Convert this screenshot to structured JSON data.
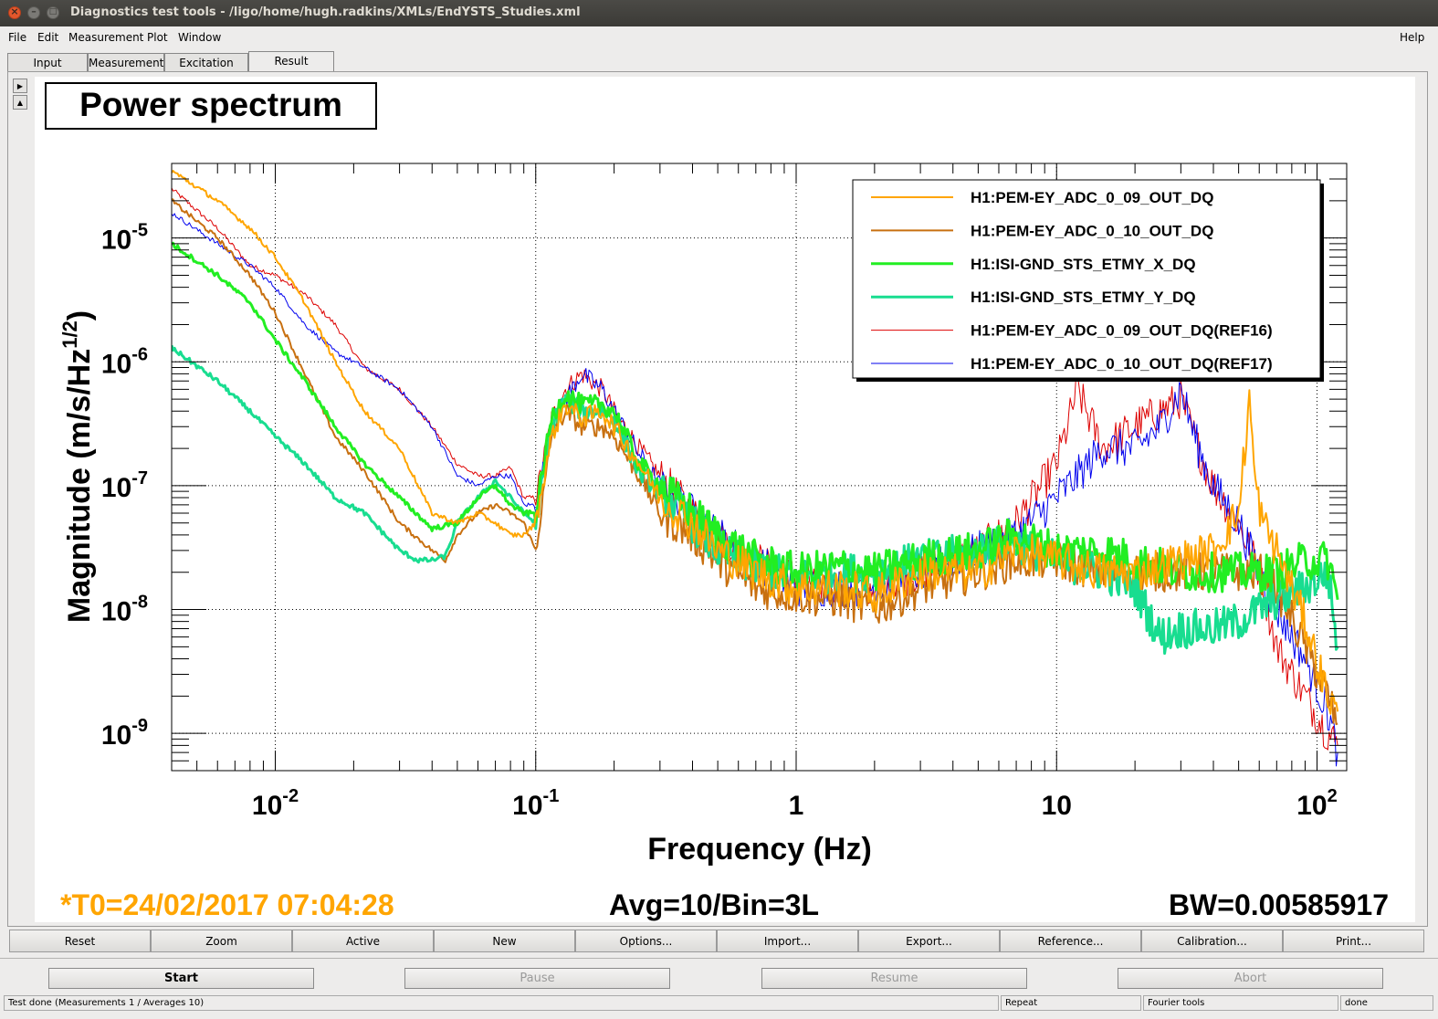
{
  "window": {
    "title": "Diagnostics test tools - /ligo/home/hugh.radkins/XMLs/EndYSTS_Studies.xml"
  },
  "menu": {
    "file": "File",
    "edit": "Edit",
    "measurement": "Measurement",
    "plot": "Plot",
    "window": "Window",
    "help": "Help"
  },
  "tabs": [
    "Input",
    "Measurement",
    "Excitation",
    "Result"
  ],
  "plot": {
    "title": "Power spectrum",
    "t0": "*T0=24/02/2017 07:04:28",
    "avg": "Avg=10/Bin=3L",
    "bw": "BW=0.00585917"
  },
  "chart_data": {
    "type": "line",
    "title": "Power spectrum",
    "xlabel": "Frequency (Hz)",
    "ylabel": "Magnitude (m/s/Hz^1/2)",
    "xscale": "log",
    "yscale": "log",
    "xlim": [
      0.004,
      130
    ],
    "ylim": [
      5e-10,
      4e-05
    ],
    "grid": true,
    "legend_position": "top-right",
    "x_ticks": [
      "10^-2",
      "10^-1",
      "1",
      "10",
      "10^2"
    ],
    "y_ticks": [
      "10^-9",
      "10^-8",
      "10^-7",
      "10^-6",
      "10^-5"
    ],
    "series": [
      {
        "name": "H1:PEM-EY_ADC_0_09_OUT_DQ",
        "color": "#ffa500",
        "width": 2,
        "x": [
          0.004,
          0.006,
          0.008,
          0.01,
          0.013,
          0.017,
          0.022,
          0.03,
          0.04,
          0.05,
          0.06,
          0.07,
          0.08,
          0.09,
          0.1,
          0.115,
          0.13,
          0.15,
          0.18,
          0.2,
          0.25,
          0.3,
          0.4,
          0.5,
          0.7,
          1,
          1.5,
          2,
          3,
          5,
          7,
          10,
          15,
          20,
          30,
          40,
          50,
          55,
          58,
          62,
          70,
          90,
          110,
          120
        ],
        "y": [
          3.5e-05,
          2e-05,
          1.2e-05,
          7e-06,
          3e-06,
          1e-06,
          4e-07,
          2e-07,
          6e-08,
          5e-08,
          6e-08,
          5e-08,
          4e-08,
          4e-08,
          5e-08,
          2.5e-07,
          4.5e-07,
          3.5e-07,
          4e-07,
          3e-07,
          1.5e-07,
          8e-08,
          5e-08,
          3e-08,
          2e-08,
          1.5e-08,
          1.5e-08,
          1.3e-08,
          2e-08,
          2e-08,
          3e-08,
          2.5e-08,
          2e-08,
          2e-08,
          2.5e-08,
          3e-08,
          6e-08,
          5e-07,
          1e-07,
          5e-08,
          3e-08,
          8e-09,
          2e-09,
          1.5e-09
        ]
      },
      {
        "name": "H1:PEM-EY_ADC_0_10_OUT_DQ",
        "color": "#c87010",
        "width": 2,
        "x": [
          0.004,
          0.006,
          0.008,
          0.01,
          0.013,
          0.017,
          0.022,
          0.03,
          0.04,
          0.045,
          0.05,
          0.06,
          0.07,
          0.08,
          0.09,
          0.1,
          0.115,
          0.13,
          0.15,
          0.18,
          0.2,
          0.25,
          0.3,
          0.4,
          0.5,
          0.7,
          1,
          1.5,
          2,
          3,
          5,
          7,
          10,
          15,
          20,
          30,
          40,
          50,
          60,
          70,
          90,
          110,
          120
        ],
        "y": [
          2e-05,
          1e-05,
          5e-06,
          2.5e-06,
          8e-07,
          2.5e-07,
          1.3e-07,
          5e-08,
          3e-08,
          2.5e-08,
          4e-08,
          6e-08,
          7e-08,
          6e-08,
          5e-08,
          3e-08,
          2.5e-07,
          4e-07,
          3e-07,
          3e-07,
          2.5e-07,
          1.2e-07,
          6e-08,
          4e-08,
          2.5e-08,
          1.5e-08,
          1.3e-08,
          1.2e-08,
          1e-08,
          1.5e-08,
          2e-08,
          2.5e-08,
          2.5e-08,
          2e-08,
          2e-08,
          2e-08,
          2e-08,
          2e-08,
          2e-08,
          1.5e-08,
          5e-09,
          2e-09,
          1.2e-09
        ]
      },
      {
        "name": "H1:ISI-GND_STS_ETMY_X_DQ",
        "color": "#22ee22",
        "width": 3,
        "x": [
          0.004,
          0.006,
          0.008,
          0.01,
          0.013,
          0.017,
          0.022,
          0.03,
          0.04,
          0.05,
          0.06,
          0.07,
          0.08,
          0.09,
          0.1,
          0.115,
          0.13,
          0.15,
          0.18,
          0.2,
          0.25,
          0.3,
          0.4,
          0.5,
          0.7,
          1,
          1.5,
          2,
          3,
          5,
          7,
          10,
          15,
          20,
          30,
          40,
          50,
          60,
          70,
          90,
          110,
          120
        ],
        "y": [
          9e-06,
          5e-06,
          3e-06,
          1.5e-06,
          7e-07,
          3e-07,
          1.5e-07,
          8e-08,
          4.5e-08,
          5e-08,
          8e-08,
          1e-07,
          7e-08,
          6e-08,
          6e-08,
          3.5e-07,
          5.5e-07,
          4.5e-07,
          4.5e-07,
          4e-07,
          1.5e-07,
          1e-07,
          6e-08,
          4e-08,
          2.5e-08,
          2e-08,
          2.2e-08,
          2e-08,
          2.5e-08,
          3e-08,
          4e-08,
          3e-08,
          3e-08,
          2.5e-08,
          2e-08,
          2e-08,
          2e-08,
          2e-08,
          2e-08,
          2.5e-08,
          2.5e-08,
          1.2e-08
        ]
      },
      {
        "name": "H1:ISI-GND_STS_ETMY_Y_DQ",
        "color": "#18dd90",
        "width": 3,
        "x": [
          0.004,
          0.006,
          0.008,
          0.01,
          0.013,
          0.017,
          0.022,
          0.03,
          0.035,
          0.04,
          0.045,
          0.05,
          0.06,
          0.07,
          0.08,
          0.09,
          0.1,
          0.115,
          0.13,
          0.15,
          0.18,
          0.2,
          0.25,
          0.3,
          0.4,
          0.5,
          0.7,
          1,
          1.5,
          2,
          3,
          5,
          7,
          10,
          15,
          20,
          25,
          30,
          40,
          50,
          60,
          70,
          90,
          110,
          120
        ],
        "y": [
          1.3e-06,
          7e-07,
          4e-07,
          2.5e-07,
          1.5e-07,
          8e-08,
          6e-08,
          3e-08,
          2.5e-08,
          2.5e-08,
          2.7e-08,
          5e-08,
          8e-08,
          1.1e-07,
          8e-08,
          6e-08,
          5e-08,
          3e-07,
          5e-07,
          4e-07,
          4e-07,
          3.5e-07,
          1.3e-07,
          9e-08,
          5e-08,
          3e-08,
          2.2e-08,
          1.8e-08,
          2e-08,
          2e-08,
          2.5e-08,
          3e-08,
          3.5e-08,
          2.5e-08,
          2e-08,
          1.5e-08,
          6e-09,
          7e-09,
          7e-09,
          8e-09,
          1e-08,
          1.2e-08,
          1.5e-08,
          2e-08,
          5e-09
        ]
      },
      {
        "name": "H1:PEM-EY_ADC_0_09_OUT_DQ(REF16)",
        "color": "#dd0000",
        "width": 1,
        "x": [
          0.004,
          0.006,
          0.008,
          0.01,
          0.013,
          0.017,
          0.022,
          0.03,
          0.04,
          0.05,
          0.06,
          0.07,
          0.08,
          0.09,
          0.1,
          0.115,
          0.13,
          0.15,
          0.18,
          0.2,
          0.25,
          0.3,
          0.4,
          0.5,
          0.7,
          1,
          1.5,
          2,
          3,
          5,
          7,
          10,
          11,
          12,
          15,
          20,
          25,
          30,
          35,
          40,
          50,
          60,
          70,
          90,
          110,
          120
        ],
        "y": [
          2.5e-05,
          1.2e-05,
          6e-06,
          5e-06,
          3.5e-06,
          2e-06,
          9e-07,
          6e-07,
          3e-07,
          1.5e-07,
          1.2e-07,
          1.2e-07,
          1.4e-07,
          8e-08,
          8e-08,
          3.5e-07,
          6e-07,
          8e-07,
          6e-07,
          4e-07,
          2e-07,
          1.2e-07,
          6e-08,
          4e-08,
          2.5e-08,
          1.8e-08,
          1.5e-08,
          1.5e-08,
          2e-08,
          3e-08,
          5e-08,
          1.5e-07,
          3e-07,
          6e-07,
          2e-07,
          3e-07,
          4e-07,
          5e-07,
          2e-07,
          1e-07,
          5e-08,
          2e-08,
          5e-09,
          2e-09,
          1e-09,
          8e-10
        ]
      },
      {
        "name": "H1:PEM-EY_ADC_0_10_OUT_DQ(REF17)",
        "color": "#0000ee",
        "width": 1,
        "x": [
          0.004,
          0.006,
          0.008,
          0.01,
          0.013,
          0.017,
          0.022,
          0.03,
          0.04,
          0.05,
          0.06,
          0.07,
          0.08,
          0.09,
          0.1,
          0.115,
          0.13,
          0.15,
          0.18,
          0.2,
          0.25,
          0.3,
          0.4,
          0.5,
          0.7,
          1,
          1.5,
          2,
          3,
          5,
          7,
          10,
          12,
          15,
          20,
          25,
          30,
          35,
          40,
          50,
          60,
          70,
          90,
          110,
          120
        ],
        "y": [
          1.6e-05,
          9e-06,
          6e-06,
          4e-06,
          2e-06,
          1.2e-06,
          9e-07,
          6e-07,
          3e-07,
          1.2e-07,
          1e-07,
          1.2e-07,
          1.2e-07,
          7e-08,
          7e-08,
          3e-07,
          5e-07,
          8e-07,
          6e-07,
          4e-07,
          1.8e-07,
          1e-07,
          6e-08,
          4e-08,
          2.5e-08,
          1.5e-08,
          1.5e-08,
          1.5e-08,
          2e-08,
          3e-08,
          4e-08,
          8e-08,
          1.2e-07,
          2e-07,
          2e-07,
          3e-07,
          6e-07,
          2e-07,
          1e-07,
          5e-08,
          2e-08,
          1e-08,
          4e-09,
          1.5e-09,
          7e-10
        ]
      }
    ]
  },
  "plot_buttons": [
    "Reset",
    "Zoom",
    "Active",
    "New",
    "Options...",
    "Import...",
    "Export...",
    "Reference...",
    "Calibration...",
    "Print..."
  ],
  "run_buttons": {
    "start": "Start",
    "pause": "Pause",
    "resume": "Resume",
    "abort": "Abort"
  },
  "status": {
    "message": "Test done (Measurements 1 / Averages 10)",
    "mode": "Repeat",
    "tools": "Fourier tools",
    "state": "done"
  },
  "colors": {
    "accent_orange": "#ffa500",
    "titlebar": "#3c3b37"
  }
}
